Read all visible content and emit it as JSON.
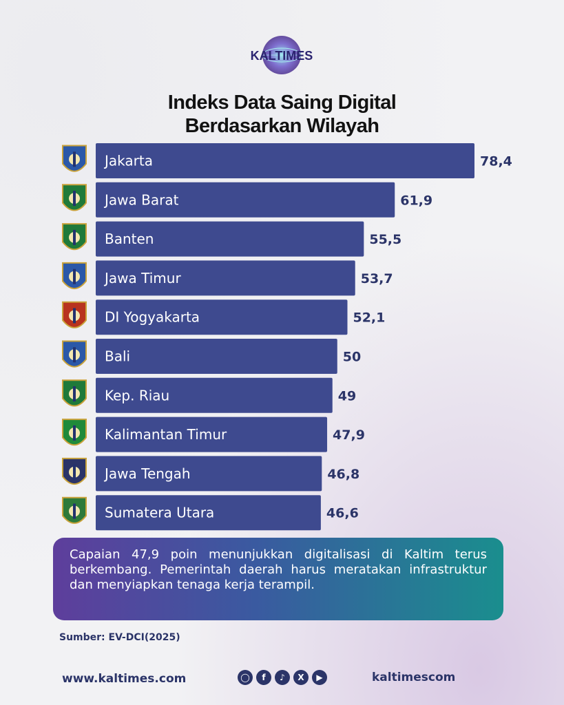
{
  "brand": {
    "name": "KALTIMES"
  },
  "title": {
    "line1": "Indeks Data Saing Digital",
    "line2": "Berdasarkan Wilayah"
  },
  "colors": {
    "bar": "#3e4a8f",
    "value_text": "#2b3468",
    "emblem_navy": "#23326e"
  },
  "chart_data": {
    "type": "bar",
    "orientation": "horizontal",
    "categories": [
      "Jakarta",
      "Jawa Barat",
      "Banten",
      "Jawa Timur",
      "DI Yogyakarta",
      "Bali",
      "Kep. Riau",
      "Kalimantan Timur",
      "Jawa Tengah",
      "Sumatera Utara"
    ],
    "values": [
      78.4,
      61.9,
      55.5,
      53.7,
      52.1,
      50,
      49,
      47.9,
      46.8,
      46.6
    ],
    "value_labels": [
      "78,4",
      "61,9",
      "55,5",
      "53,7",
      "52,1",
      "50",
      "49",
      "47,9",
      "46,8",
      "46,6"
    ],
    "emblem_icons": [
      "jakarta-emblem-icon",
      "jawa-barat-emblem-icon",
      "banten-emblem-icon",
      "jawa-timur-emblem-icon",
      "yogyakarta-emblem-icon",
      "bali-emblem-icon",
      "kep-riau-emblem-icon",
      "kalimantan-timur-emblem-icon",
      "jawa-tengah-emblem-icon",
      "sumatera-utara-emblem-icon"
    ],
    "emblem_colors": [
      "#2b58a8",
      "#1f7a3a",
      "#1f7a3a",
      "#2b58a8",
      "#b8331f",
      "#2b58a8",
      "#1f7a3a",
      "#1f8a3a",
      "#2b3468",
      "#2e7a3a"
    ]
  },
  "callout": {
    "text": "Capaian 47,9 poin menunjukkan digitalisasi di Kaltim terus berkembang. Pemerintah daerah harus meratakan infrastruktur dan menyiapkan tenaga kerja terampil."
  },
  "source": "Sumber: EV-DCI(2025)",
  "footer": {
    "website": "www.kaltimes.com",
    "handle": "kaltimescom",
    "social_icons": [
      "instagram-icon",
      "facebook-icon",
      "tiktok-icon",
      "x-icon",
      "youtube-icon"
    ]
  }
}
